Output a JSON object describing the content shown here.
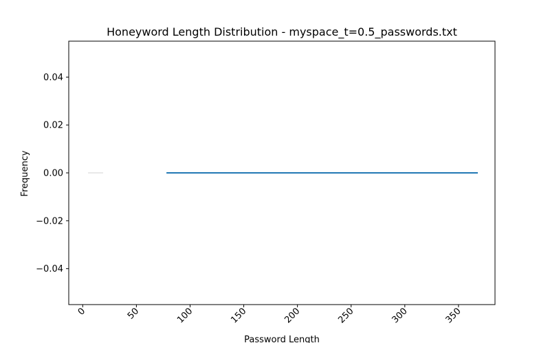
{
  "chart_data": {
    "type": "line",
    "title": "Honeyword Length Distribution - myspace_t=0.5_passwords.txt",
    "xlabel": "Password Length",
    "ylabel": "Frequency",
    "xlim": [
      -13,
      384
    ],
    "ylim": [
      -0.055,
      0.055
    ],
    "xticks": [
      0,
      50,
      100,
      150,
      200,
      250,
      300,
      350
    ],
    "xtick_labels": [
      "0",
      "50",
      "100",
      "150",
      "200",
      "250",
      "300",
      "350"
    ],
    "yticks": [
      -0.04,
      -0.02,
      0.0,
      0.02,
      0.04
    ],
    "ytick_labels": [
      "−0.04",
      "−0.02",
      "0.00",
      "0.02",
      "0.04"
    ],
    "grid": false,
    "series": [
      {
        "x": [
          78,
          368
        ],
        "y": [
          0,
          0
        ],
        "color": "#1f77b4"
      },
      {
        "x": [
          5,
          19
        ],
        "y": [
          0,
          0
        ],
        "color": "#e8e8e8"
      }
    ]
  }
}
